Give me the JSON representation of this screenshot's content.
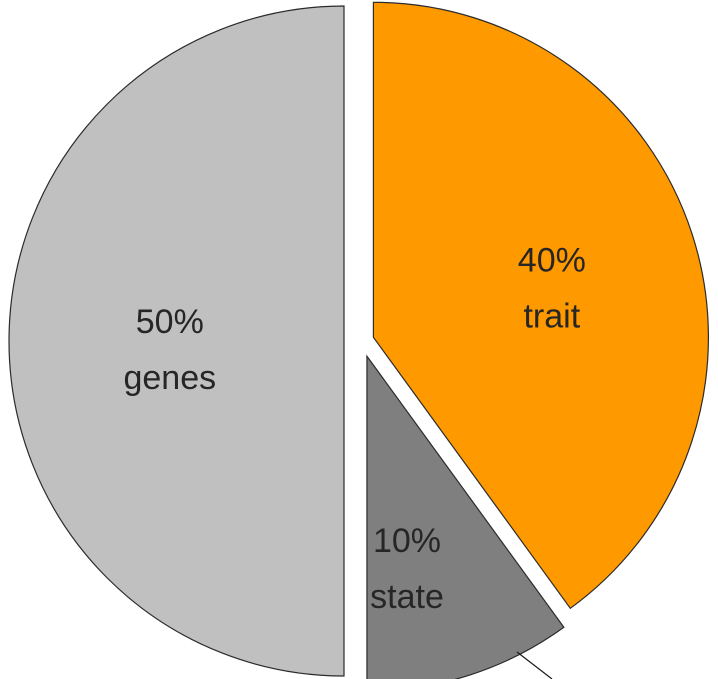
{
  "chart_data": {
    "type": "pie",
    "start": "12 o'clock",
    "direction": "clockwise",
    "exploded": true,
    "slices": [
      {
        "name": "trait",
        "value": 40,
        "value_label": "40%",
        "label": "trait",
        "color": "#ff9900"
      },
      {
        "name": "state",
        "value": 10,
        "value_label": "10%",
        "label": "state",
        "color": "#7f7f7f"
      },
      {
        "name": "genes",
        "value": 50,
        "value_label": "50%",
        "label": "genes",
        "color": "#c0c0c0"
      }
    ]
  }
}
